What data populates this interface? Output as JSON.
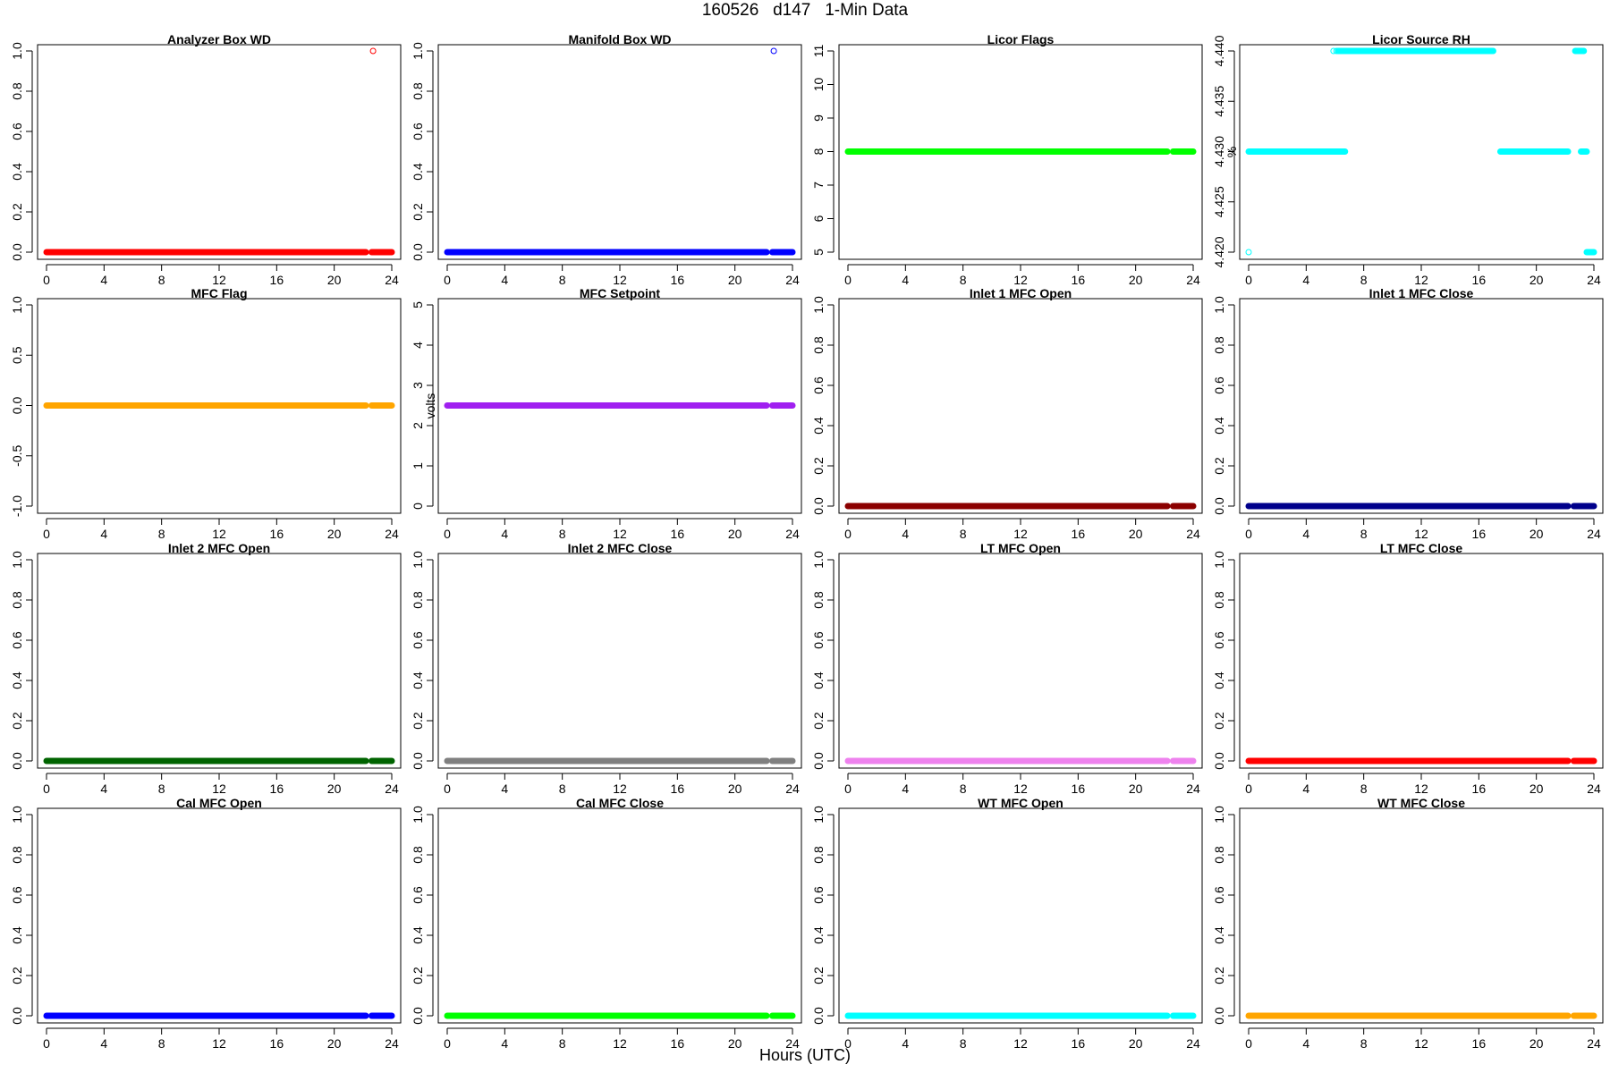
{
  "page": {
    "title": "160526   d147   1-Min Data",
    "xlabel": "Hours (UTC)"
  },
  "chart_data": [
    {
      "type": "scatter",
      "title": "Analyzer Box WD",
      "ylabel": "",
      "color": "#ff0000",
      "xlim": [
        0,
        24
      ],
      "ylim": [
        0,
        1
      ],
      "xticks": [
        "0",
        "4",
        "8",
        "12",
        "16",
        "20",
        "24"
      ],
      "yticks": [
        "0.0",
        "0.2",
        "0.4",
        "0.6",
        "0.8",
        "1.0"
      ],
      "segments": [
        {
          "x0": 0,
          "x1": 22.2,
          "y": 0
        },
        {
          "x0": 22.6,
          "x1": 24,
          "y": 0
        }
      ],
      "points": [
        {
          "x": 22.7,
          "y": 1
        }
      ]
    },
    {
      "type": "scatter",
      "title": "Manifold Box WD",
      "ylabel": "",
      "color": "#0000ff",
      "xlim": [
        0,
        24
      ],
      "ylim": [
        0,
        1
      ],
      "xticks": [
        "0",
        "4",
        "8",
        "12",
        "16",
        "20",
        "24"
      ],
      "yticks": [
        "0.0",
        "0.2",
        "0.4",
        "0.6",
        "0.8",
        "1.0"
      ],
      "segments": [
        {
          "x0": 0,
          "x1": 22.2,
          "y": 0
        },
        {
          "x0": 22.6,
          "x1": 24,
          "y": 0
        }
      ],
      "points": [
        {
          "x": 22.7,
          "y": 1
        }
      ]
    },
    {
      "type": "scatter",
      "title": "Licor Flags",
      "ylabel": "",
      "color": "#00ff00",
      "xlim": [
        0,
        24
      ],
      "ylim": [
        5,
        11
      ],
      "xticks": [
        "0",
        "4",
        "8",
        "12",
        "16",
        "20",
        "24"
      ],
      "yticks": [
        "5",
        "6",
        "7",
        "8",
        "9",
        "10",
        "11"
      ],
      "segments": [
        {
          "x0": 0,
          "x1": 22.2,
          "y": 8
        },
        {
          "x0": 22.6,
          "x1": 24,
          "y": 8
        }
      ],
      "points": []
    },
    {
      "type": "scatter",
      "title": "Licor Source RH",
      "ylabel": "%",
      "color": "#00ffff",
      "xlim": [
        0,
        24
      ],
      "ylim": [
        4.42,
        4.44
      ],
      "xticks": [
        "0",
        "4",
        "8",
        "12",
        "16",
        "20",
        "24"
      ],
      "yticks": [
        "4.420",
        "4.425",
        "4.430",
        "4.435",
        "4.440"
      ],
      "segments": [
        {
          "x0": 0,
          "x1": 6.7,
          "y": 4.43
        },
        {
          "x0": 6.2,
          "x1": 17.0,
          "y": 4.44
        },
        {
          "x0": 17.5,
          "x1": 22.2,
          "y": 4.43
        },
        {
          "x0": 22.7,
          "x1": 23.3,
          "y": 4.44
        },
        {
          "x0": 23.1,
          "x1": 23.5,
          "y": 4.43
        },
        {
          "x0": 23.5,
          "x1": 24,
          "y": 4.42
        }
      ],
      "points": [
        {
          "x": 0,
          "y": 4.42
        },
        {
          "x": 5.9,
          "y": 4.44
        },
        {
          "x": 6.1,
          "y": 4.44
        }
      ]
    },
    {
      "type": "scatter",
      "title": "MFC Flag",
      "ylabel": "",
      "color": "#ffa500",
      "xlim": [
        0,
        24
      ],
      "ylim": [
        -1,
        1
      ],
      "xticks": [
        "0",
        "4",
        "8",
        "12",
        "16",
        "20",
        "24"
      ],
      "yticks": [
        "-1.0",
        "-0.5",
        "0.0",
        "0.5",
        "1.0"
      ],
      "segments": [
        {
          "x0": 0,
          "x1": 22.2,
          "y": 0
        },
        {
          "x0": 22.6,
          "x1": 24,
          "y": 0
        }
      ],
      "points": []
    },
    {
      "type": "scatter",
      "title": "MFC Setpoint",
      "ylabel": "volts",
      "color": "#a020f0",
      "xlim": [
        0,
        24
      ],
      "ylim": [
        0,
        5
      ],
      "xticks": [
        "0",
        "4",
        "8",
        "12",
        "16",
        "20",
        "24"
      ],
      "yticks": [
        "0",
        "1",
        "2",
        "3",
        "4",
        "5"
      ],
      "segments": [
        {
          "x0": 0,
          "x1": 22.2,
          "y": 2.5
        },
        {
          "x0": 22.6,
          "x1": 24,
          "y": 2.5
        }
      ],
      "points": []
    },
    {
      "type": "scatter",
      "title": "Inlet 1 MFC Open",
      "ylabel": "",
      "color": "#8b0000",
      "xlim": [
        0,
        24
      ],
      "ylim": [
        0,
        1
      ],
      "xticks": [
        "0",
        "4",
        "8",
        "12",
        "16",
        "20",
        "24"
      ],
      "yticks": [
        "0.0",
        "0.2",
        "0.4",
        "0.6",
        "0.8",
        "1.0"
      ],
      "segments": [
        {
          "x0": 0,
          "x1": 22.2,
          "y": 0
        },
        {
          "x0": 22.6,
          "x1": 24,
          "y": 0
        }
      ],
      "points": []
    },
    {
      "type": "scatter",
      "title": "Inlet 1 MFC Close",
      "ylabel": "",
      "color": "#00008b",
      "xlim": [
        0,
        24
      ],
      "ylim": [
        0,
        1
      ],
      "xticks": [
        "0",
        "4",
        "8",
        "12",
        "16",
        "20",
        "24"
      ],
      "yticks": [
        "0.0",
        "0.2",
        "0.4",
        "0.6",
        "0.8",
        "1.0"
      ],
      "segments": [
        {
          "x0": 0,
          "x1": 22.2,
          "y": 0
        },
        {
          "x0": 22.6,
          "x1": 24,
          "y": 0
        }
      ],
      "points": []
    },
    {
      "type": "scatter",
      "title": "Inlet 2 MFC Open",
      "ylabel": "",
      "color": "#006400",
      "xlim": [
        0,
        24
      ],
      "ylim": [
        0,
        1
      ],
      "xticks": [
        "0",
        "4",
        "8",
        "12",
        "16",
        "20",
        "24"
      ],
      "yticks": [
        "0.0",
        "0.2",
        "0.4",
        "0.6",
        "0.8",
        "1.0"
      ],
      "segments": [
        {
          "x0": 0,
          "x1": 22.2,
          "y": 0
        },
        {
          "x0": 22.6,
          "x1": 24,
          "y": 0
        }
      ],
      "points": []
    },
    {
      "type": "scatter",
      "title": "Inlet 2 MFC Close",
      "ylabel": "",
      "color": "#808080",
      "xlim": [
        0,
        24
      ],
      "ylim": [
        0,
        1
      ],
      "xticks": [
        "0",
        "4",
        "8",
        "12",
        "16",
        "20",
        "24"
      ],
      "yticks": [
        "0.0",
        "0.2",
        "0.4",
        "0.6",
        "0.8",
        "1.0"
      ],
      "segments": [
        {
          "x0": 0,
          "x1": 22.2,
          "y": 0
        },
        {
          "x0": 22.6,
          "x1": 24,
          "y": 0
        }
      ],
      "points": []
    },
    {
      "type": "scatter",
      "title": "LT MFC Open",
      "ylabel": "",
      "color": "#ee82ee",
      "xlim": [
        0,
        24
      ],
      "ylim": [
        0,
        1
      ],
      "xticks": [
        "0",
        "4",
        "8",
        "12",
        "16",
        "20",
        "24"
      ],
      "yticks": [
        "0.0",
        "0.2",
        "0.4",
        "0.6",
        "0.8",
        "1.0"
      ],
      "segments": [
        {
          "x0": 0,
          "x1": 22.2,
          "y": 0
        },
        {
          "x0": 22.6,
          "x1": 24,
          "y": 0
        }
      ],
      "points": []
    },
    {
      "type": "scatter",
      "title": "LT MFC Close",
      "ylabel": "",
      "color": "#ff0000",
      "xlim": [
        0,
        24
      ],
      "ylim": [
        0,
        1
      ],
      "xticks": [
        "0",
        "4",
        "8",
        "12",
        "16",
        "20",
        "24"
      ],
      "yticks": [
        "0.0",
        "0.2",
        "0.4",
        "0.6",
        "0.8",
        "1.0"
      ],
      "segments": [
        {
          "x0": 0,
          "x1": 22.2,
          "y": 0
        },
        {
          "x0": 22.6,
          "x1": 24,
          "y": 0
        }
      ],
      "points": []
    },
    {
      "type": "scatter",
      "title": "Cal MFC Open",
      "ylabel": "",
      "color": "#0000ff",
      "xlim": [
        0,
        24
      ],
      "ylim": [
        0,
        1
      ],
      "xticks": [
        "0",
        "4",
        "8",
        "12",
        "16",
        "20",
        "24"
      ],
      "yticks": [
        "0.0",
        "0.2",
        "0.4",
        "0.6",
        "0.8",
        "1.0"
      ],
      "segments": [
        {
          "x0": 0,
          "x1": 22.2,
          "y": 0
        },
        {
          "x0": 22.6,
          "x1": 24,
          "y": 0
        }
      ],
      "points": []
    },
    {
      "type": "scatter",
      "title": "Cal MFC Close",
      "ylabel": "",
      "color": "#00ff00",
      "xlim": [
        0,
        24
      ],
      "ylim": [
        0,
        1
      ],
      "xticks": [
        "0",
        "4",
        "8",
        "12",
        "16",
        "20",
        "24"
      ],
      "yticks": [
        "0.0",
        "0.2",
        "0.4",
        "0.6",
        "0.8",
        "1.0"
      ],
      "segments": [
        {
          "x0": 0,
          "x1": 22.2,
          "y": 0
        },
        {
          "x0": 22.6,
          "x1": 24,
          "y": 0
        }
      ],
      "points": []
    },
    {
      "type": "scatter",
      "title": "WT MFC Open",
      "ylabel": "",
      "color": "#00ffff",
      "xlim": [
        0,
        24
      ],
      "ylim": [
        0,
        1
      ],
      "xticks": [
        "0",
        "4",
        "8",
        "12",
        "16",
        "20",
        "24"
      ],
      "yticks": [
        "0.0",
        "0.2",
        "0.4",
        "0.6",
        "0.8",
        "1.0"
      ],
      "segments": [
        {
          "x0": 0,
          "x1": 22.2,
          "y": 0
        },
        {
          "x0": 22.6,
          "x1": 24,
          "y": 0
        }
      ],
      "points": []
    },
    {
      "type": "scatter",
      "title": "WT MFC Close",
      "ylabel": "",
      "color": "#ffa500",
      "xlim": [
        0,
        24
      ],
      "ylim": [
        0,
        1
      ],
      "xticks": [
        "0",
        "4",
        "8",
        "12",
        "16",
        "20",
        "24"
      ],
      "yticks": [
        "0.0",
        "0.2",
        "0.4",
        "0.6",
        "0.8",
        "1.0"
      ],
      "segments": [
        {
          "x0": 0,
          "x1": 22.2,
          "y": 0
        },
        {
          "x0": 22.6,
          "x1": 24,
          "y": 0
        }
      ],
      "points": []
    }
  ]
}
